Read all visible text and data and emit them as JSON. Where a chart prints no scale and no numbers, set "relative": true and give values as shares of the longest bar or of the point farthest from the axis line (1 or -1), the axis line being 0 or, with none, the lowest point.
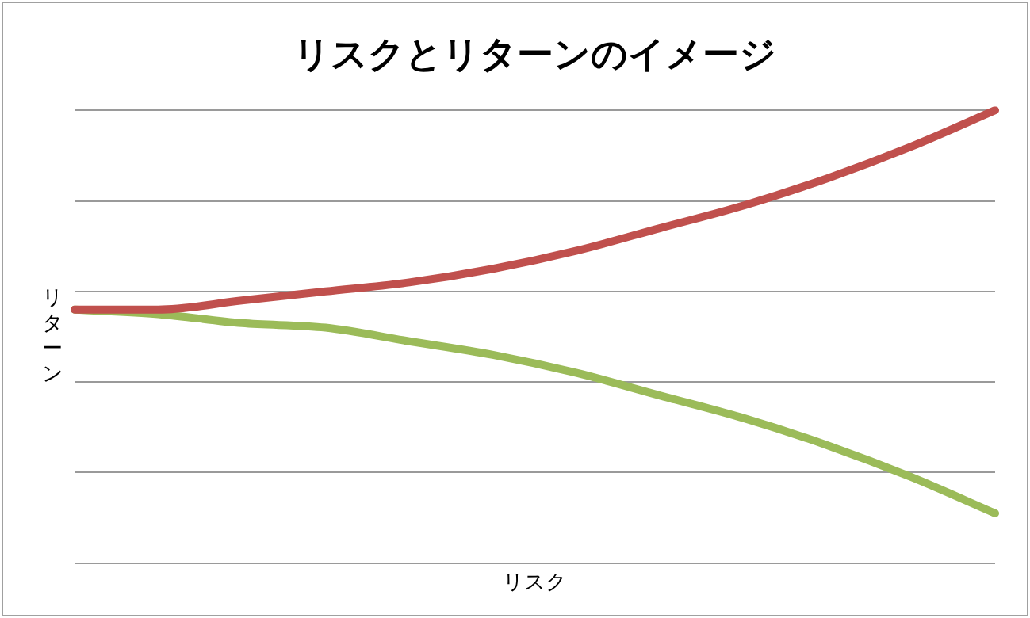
{
  "chart_data": {
    "type": "line",
    "title": "リスクとリターンのイメージ",
    "xlabel": "リスク",
    "ylabel": "リターン",
    "relative": true,
    "grid": "y",
    "legend": false,
    "marker": "none",
    "line_style": "solid",
    "categories": [
      null,
      null,
      null,
      null,
      null,
      null,
      null,
      null,
      null,
      null,
      null,
      null
    ],
    "series": [
      {
        "color": "#c0504d",
        "values": [
          0.56,
          0.56,
          0.58,
          0.6,
          0.62,
          0.65,
          0.69,
          0.74,
          0.79,
          0.85,
          0.92,
          1
        ]
      },
      {
        "color": "#9bbb59",
        "values": [
          0.56,
          0.55,
          0.53,
          0.52,
          0.49,
          0.46,
          0.42,
          0.37,
          0.32,
          0.26,
          0.19,
          0.11
        ]
      }
    ]
  }
}
